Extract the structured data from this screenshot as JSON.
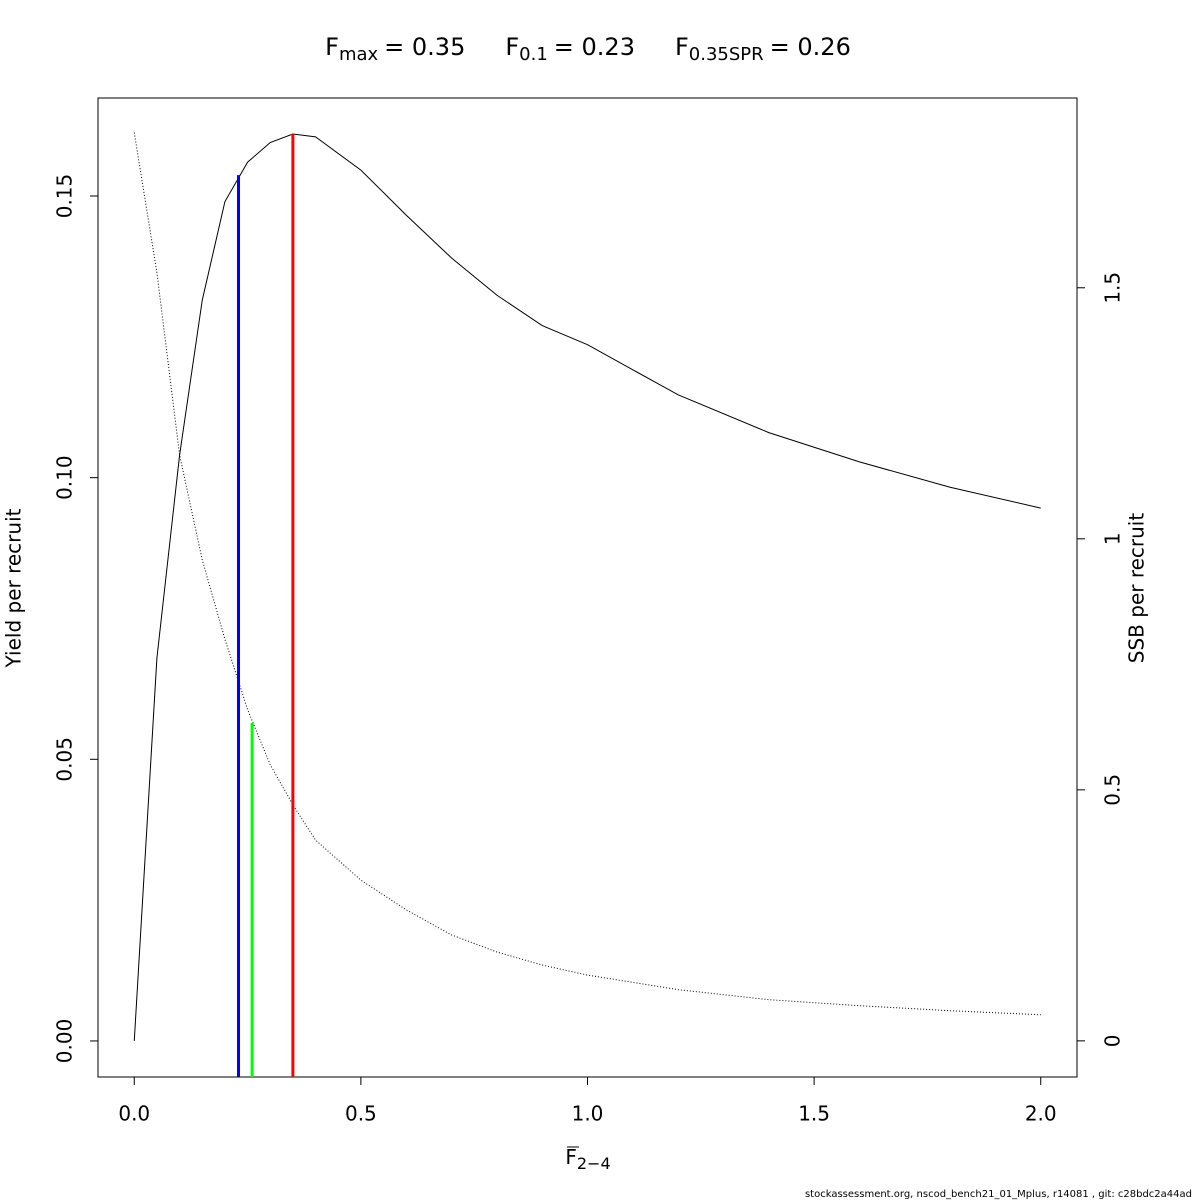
{
  "chart_data": {
    "type": "line",
    "title": [
      {
        "symbol": "F",
        "subscript": "max",
        "text": "= 0.35"
      },
      {
        "symbol": "F",
        "subscript": "0.1",
        "text": "= 0.23"
      },
      {
        "symbol": "F",
        "subscript": "0.35SPR",
        "text": "= 0.26"
      }
    ],
    "xlabel": {
      "symbol": "F",
      "subscript": "2−4"
    },
    "ylabel": "Yield per recruit",
    "y2label": "SSB per recruit",
    "footer": "stockassessment.org, nscod_bench21_01_Mplus, r14081 , git: c28bdc2a44ad",
    "x": [
      0,
      0.05,
      0.1,
      0.15,
      0.2,
      0.25,
      0.3,
      0.35,
      0.4,
      0.5,
      0.6,
      0.7,
      0.8,
      0.9,
      1.0,
      1.2,
      1.4,
      1.6,
      1.8,
      2.0
    ],
    "series": [
      {
        "color": "#000000",
        "dash": "none",
        "values": [
          0,
          0.068,
          0.104,
          0.1315,
          0.149,
          0.156,
          0.1595,
          0.161,
          0.1605,
          0.1546,
          0.1466,
          0.139,
          0.1324,
          0.127,
          0.1236,
          0.1147,
          0.108,
          0.1028,
          0.0983,
          0.0946
        ]
      },
      {
        "color": "#000000",
        "dash": "1 2",
        "axis": "y2",
        "values": [
          1.809,
          1.53,
          1.167,
          0.958,
          0.8,
          0.66,
          0.55,
          0.47,
          0.4,
          0.32,
          0.261,
          0.211,
          0.177,
          0.151,
          0.131,
          0.102,
          0.082,
          0.07,
          0.06,
          0.052
        ]
      }
    ],
    "reference_lines": [
      {
        "x": 0.23,
        "value": 0.1537,
        "color": "#0000ff"
      },
      {
        "x": 0.26,
        "value": 0.633,
        "axis": "y2",
        "color": "#00ff00"
      },
      {
        "x": 0.35,
        "value": 0.161,
        "color": "#ff0000"
      }
    ],
    "xlim": [
      -0.08,
      2.08
    ],
    "xticks": [
      {
        "value": 0,
        "label": "0.0"
      },
      0.5,
      {
        "value": 1,
        "label": "1.0"
      },
      1.5,
      {
        "value": 2,
        "label": "2.0"
      }
    ],
    "ylim": [
      -0.0064,
      0.1674
    ],
    "yticks": [
      {
        "value": 0,
        "label": "0.00"
      },
      0.05,
      {
        "value": 0.1,
        "label": "0.10"
      },
      0.15
    ],
    "y2lim": [
      -0.072,
      1.878
    ],
    "y2ticks": [
      0,
      0.5,
      1,
      1.5
    ]
  }
}
